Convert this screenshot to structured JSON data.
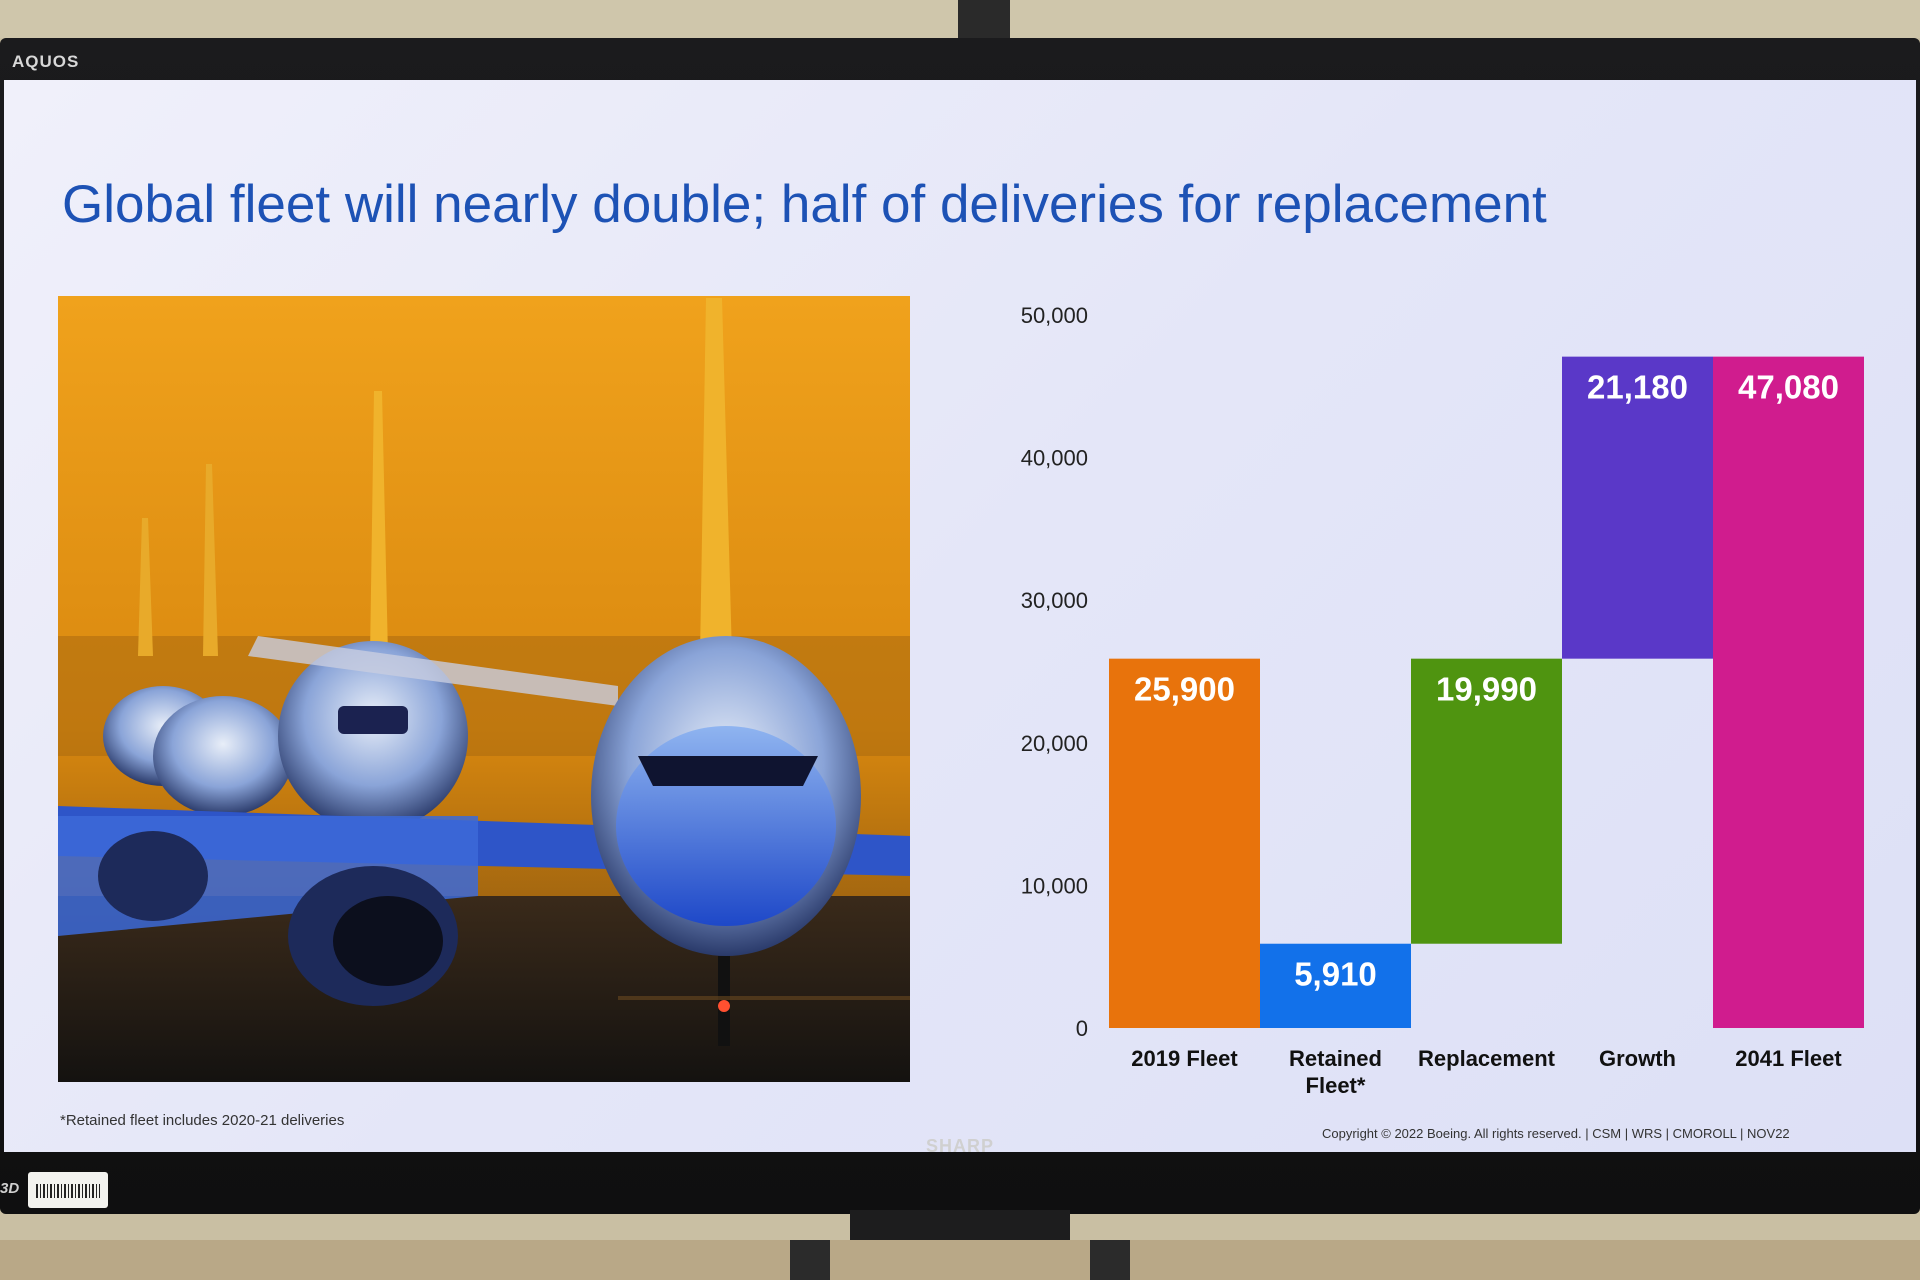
{
  "monitor": {
    "brand_top": "AQUOS",
    "brand_bottom": "SHARP",
    "badge": "3D"
  },
  "slide": {
    "title": "Global fleet will nearly double; half of deliveries for replacement",
    "footnote": "*Retained fleet includes 2020-21 deliveries",
    "copyright": "Copyright © 2022 Boeing. All rights reserved.  |  CSM  |  WRS  |  CMOROLL  |  NOV22"
  },
  "chart_data": {
    "type": "bar",
    "subtype": "waterfall",
    "categories": [
      "2019 Fleet",
      "Retained Fleet*",
      "Replacement",
      "Growth",
      "2041 Fleet"
    ],
    "values": [
      25900,
      5910,
      19990,
      21180,
      47080
    ],
    "label_text": [
      "25,900",
      "5,910",
      "19,990",
      "21,180",
      "47,080"
    ],
    "bar_ranges": [
      [
        0,
        25900
      ],
      [
        0,
        5910
      ],
      [
        5910,
        25900
      ],
      [
        25900,
        47080
      ],
      [
        0,
        47080
      ]
    ],
    "colors": [
      "#e8730c",
      "#1271ea",
      "#4f9410",
      "#5a38c8",
      "#d01c8e"
    ],
    "yticks": [
      0,
      10000,
      20000,
      30000,
      40000,
      50000
    ],
    "ytick_labels": [
      "0",
      "10,000",
      "20,000",
      "30,000",
      "40,000",
      "50,000"
    ],
    "ylim": [
      0,
      50000
    ],
    "title": "",
    "xlabel": "",
    "ylabel": ""
  }
}
